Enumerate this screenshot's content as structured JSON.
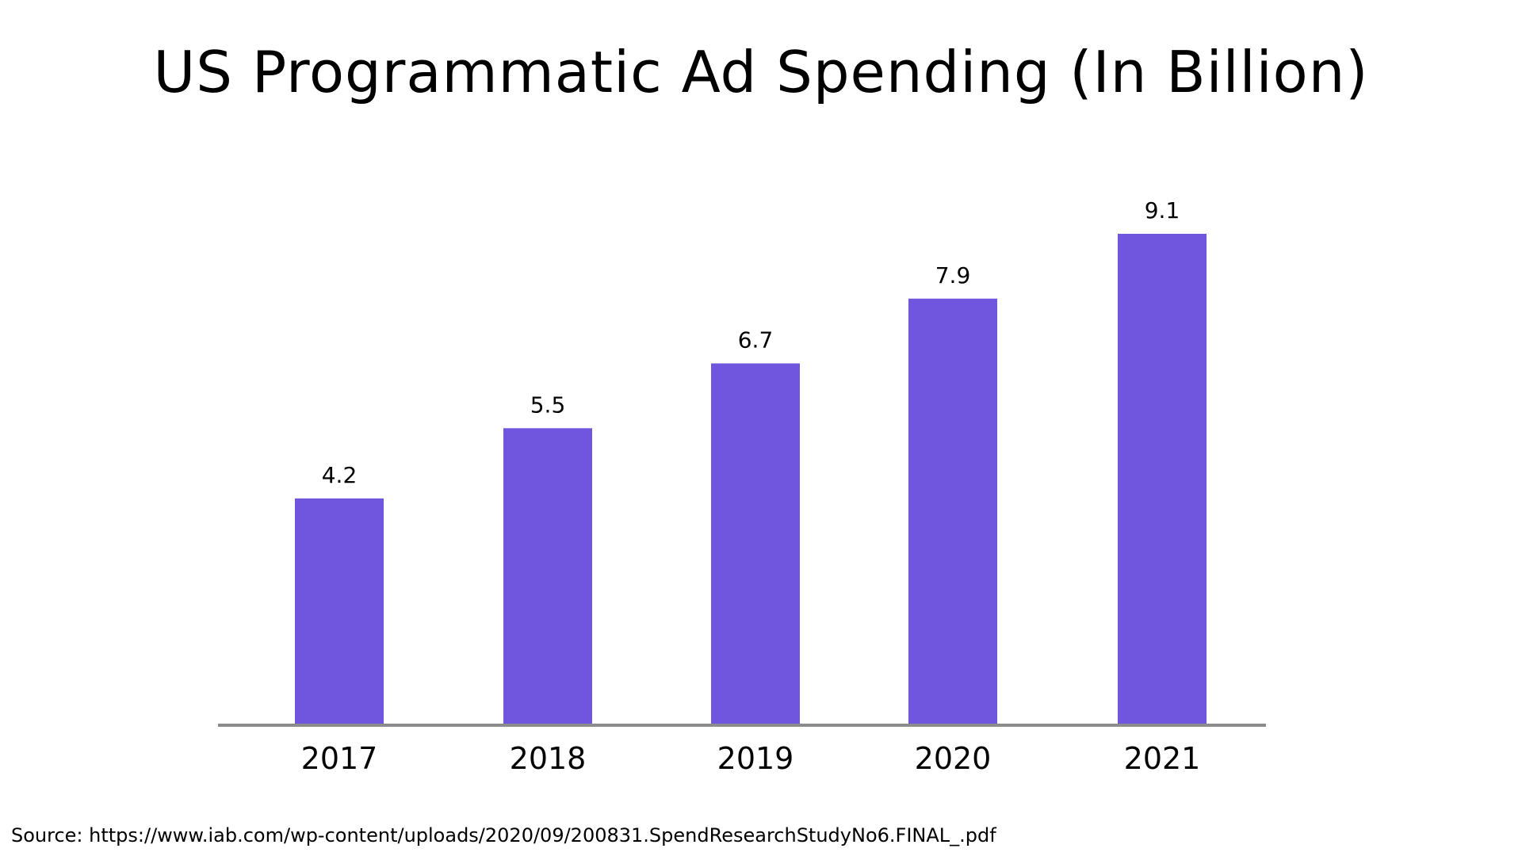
{
  "chart_data": {
    "type": "bar",
    "title": "US Programmatic Ad Spending (In Billion)",
    "categories": [
      "2017",
      "2018",
      "2019",
      "2020",
      "2021"
    ],
    "values": [
      4.2,
      5.5,
      6.7,
      7.9,
      9.1
    ],
    "data_labels": [
      "4.2",
      "5.5",
      "6.7",
      "7.9",
      "9.1"
    ],
    "xlabel": "",
    "ylabel": "",
    "ylim": [
      0,
      9.1
    ],
    "grid": false,
    "legend": "none",
    "colors": {
      "bar": "#7055DE",
      "axis": "#8C8C8C",
      "text": "#000000"
    }
  },
  "source": "Source: https://www.iab.com/wp-content/uploads/2020/09/200831.SpendResearchStudyNo6.FINAL_.pdf"
}
